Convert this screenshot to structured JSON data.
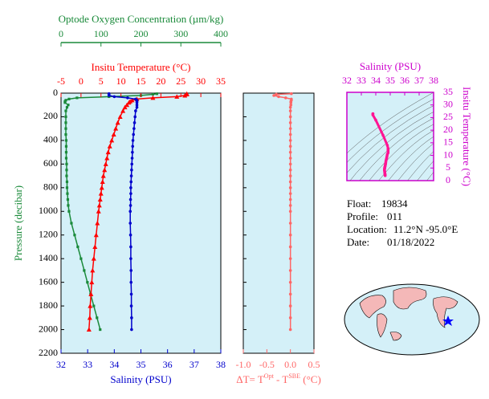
{
  "chart_data": [
    {
      "type": "profile",
      "ylabel": "Pressure (decibar)",
      "ylim": [
        0,
        2200
      ],
      "yticks": [
        0,
        200,
        400,
        600,
        800,
        1000,
        1200,
        1400,
        1600,
        1800,
        2000,
        2200
      ],
      "y_inverted": true,
      "background": "#d4f0f8",
      "pressure": [
        5,
        10,
        20,
        30,
        40,
        50,
        60,
        70,
        80,
        100,
        120,
        150,
        200,
        250,
        300,
        350,
        400,
        450,
        500,
        550,
        600,
        650,
        700,
        750,
        800,
        850,
        900,
        950,
        1000,
        1100,
        1200,
        1300,
        1400,
        1500,
        1600,
        1700,
        1800,
        1900,
        2000
      ],
      "series": [
        {
          "name": "Optode Oxygen Concentration (µm/kg)",
          "color": "#1a8a3a",
          "marker": "square",
          "axis": "top-outer",
          "xlim": [
            0,
            400
          ],
          "xticks": [
            0,
            100,
            200,
            300,
            400
          ],
          "values": [
            240,
            230,
            200,
            120,
            40,
            20,
            12,
            10,
            10,
            18,
            15,
            12,
            12,
            12,
            12,
            12,
            13,
            13,
            13,
            13,
            14,
            14,
            14,
            15,
            15,
            16,
            17,
            18,
            20,
            26,
            34,
            42,
            50,
            58,
            66,
            74,
            82,
            90,
            98
          ]
        },
        {
          "name": "Insitu Temperature (°C)",
          "color": "#ff0000",
          "marker": "triangle",
          "axis": "top",
          "xlim": [
            -5,
            35
          ],
          "xticks": [
            -5,
            0,
            5,
            10,
            15,
            20,
            25,
            30,
            35
          ],
          "values": [
            26.5,
            26.5,
            26,
            24,
            18,
            14,
            12.8,
            12.3,
            12,
            11.5,
            11,
            10.5,
            9.8,
            9.2,
            8.7,
            8.2,
            7.7,
            7.2,
            6.8,
            6.5,
            6.2,
            5.9,
            5.6,
            5.4,
            5.2,
            5.0,
            4.8,
            4.6,
            4.4,
            4.1,
            3.8,
            3.5,
            3.2,
            2.9,
            2.7,
            2.5,
            2.3,
            2.2,
            2.0
          ]
        },
        {
          "name": "Salinity (PSU)",
          "color": "#0000cc",
          "marker": "circle",
          "axis": "bottom",
          "xlim": [
            32,
            38
          ],
          "xticks": [
            32,
            33,
            34,
            35,
            36,
            37,
            38
          ],
          "values": [
            33.8,
            33.8,
            33.8,
            34.0,
            34.5,
            34.8,
            34.85,
            34.85,
            34.85,
            34.85,
            34.85,
            34.8,
            34.78,
            34.76,
            34.74,
            34.72,
            34.7,
            34.69,
            34.68,
            34.67,
            34.66,
            34.65,
            34.64,
            34.63,
            34.62,
            34.62,
            34.61,
            34.61,
            34.6,
            34.6,
            34.61,
            34.62,
            34.62,
            34.63,
            34.63,
            34.64,
            34.64,
            34.65,
            34.65
          ]
        }
      ]
    },
    {
      "type": "profile",
      "ylim": [
        0,
        2200
      ],
      "yticks": [
        0,
        200,
        400,
        600,
        800,
        1000,
        1200,
        1400,
        1600,
        1800,
        2000,
        2200
      ],
      "y_inverted": true,
      "background": "#d4f0f8",
      "xlabel_parts": [
        "ΔT= T",
        "Opt",
        " - T",
        "SBE",
        " (°C)"
      ],
      "pressure": [
        5,
        10,
        20,
        30,
        40,
        50,
        60,
        70,
        80,
        100,
        120,
        150,
        200,
        250,
        300,
        350,
        400,
        450,
        500,
        550,
        600,
        650,
        700,
        750,
        800,
        850,
        900,
        950,
        1000,
        1100,
        1200,
        1300,
        1400,
        1500,
        1600,
        1700,
        1800,
        1900,
        2000
      ],
      "series": [
        {
          "color": "#ff6666",
          "marker": "circle",
          "axis": "bottom",
          "xlim": [
            -1,
            0.5
          ],
          "xticks": [
            {
              "value": -1,
              "label": "-1.0"
            },
            {
              "value": -0.5,
              "label": "-0.5"
            },
            {
              "value": 0,
              "label": "0.0"
            },
            {
              "value": 0.5,
              "label": "0.5"
            }
          ],
          "values": [
            0.02,
            -0.3,
            -0.35,
            -0.25,
            -0.1,
            0.02,
            0.02,
            0.01,
            0.01,
            0.01,
            0,
            0,
            0,
            0,
            0,
            0,
            0,
            0,
            0,
            0,
            0,
            0,
            0,
            0,
            0,
            0,
            0,
            0,
            0,
            0,
            0,
            0,
            0,
            0,
            0,
            0,
            0,
            0,
            0
          ]
        }
      ]
    },
    {
      "type": "ts",
      "xlabel": "Salinity (PSU)",
      "ylabel": "Insitu Temperature (°C)",
      "color": "#ff1493",
      "background": "#d4f0f8",
      "xlim": [
        32,
        38
      ],
      "xticks": [
        32,
        33,
        34,
        35,
        36,
        37,
        38
      ],
      "ylim": [
        0,
        35
      ],
      "yticks": [
        0,
        5,
        10,
        15,
        20,
        25,
        30,
        35
      ],
      "x": [
        33.8,
        33.8,
        33.8,
        34.0,
        34.5,
        34.8,
        34.85,
        34.85,
        34.85,
        34.85,
        34.85,
        34.8,
        34.78,
        34.76,
        34.74,
        34.72,
        34.7,
        34.69,
        34.68,
        34.67,
        34.66,
        34.65,
        34.64,
        34.63,
        34.62,
        34.62,
        34.61,
        34.61,
        34.6,
        34.6,
        34.61,
        34.62,
        34.62,
        34.63,
        34.63,
        34.64,
        34.64,
        34.65,
        34.65
      ],
      "values": [
        26.5,
        26.5,
        26,
        24,
        18,
        14,
        12.8,
        12.3,
        12,
        11.5,
        11,
        10.5,
        9.8,
        9.2,
        8.7,
        8.2,
        7.7,
        7.2,
        6.8,
        6.5,
        6.2,
        5.9,
        5.6,
        5.4,
        5.2,
        5.0,
        4.8,
        4.6,
        4.4,
        4.1,
        3.8,
        3.5,
        3.2,
        2.9,
        2.7,
        2.5,
        2.3,
        2.2,
        2.0
      ]
    }
  ],
  "info": [
    {
      "label": "Float:",
      "value": "19834"
    },
    {
      "label": "Profile:",
      "value": "011"
    },
    {
      "label": "Location:",
      "value": "11.2°N  -95.0°E"
    },
    {
      "label": "Date:",
      "value": "01/18/2022"
    }
  ]
}
